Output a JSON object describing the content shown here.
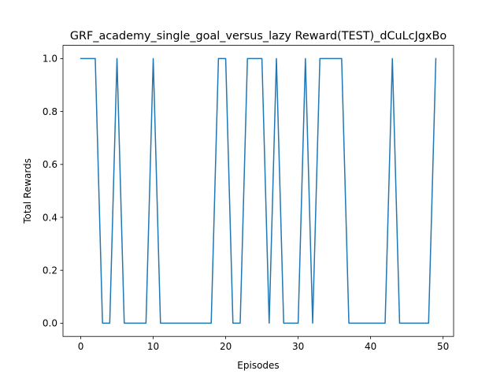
{
  "chart_data": {
    "type": "line",
    "title": "GRF_academy_single_goal_versus_lazy Reward(TEST)_dCuLcJgxBo",
    "xlabel": "Episodes",
    "ylabel": "Total Rewards",
    "xlim": [
      -2.45,
      51.45
    ],
    "ylim": [
      -0.05,
      1.05
    ],
    "xticks": [
      0,
      10,
      20,
      30,
      40,
      50
    ],
    "xtick_labels": [
      "0",
      "10",
      "20",
      "30",
      "40",
      "50"
    ],
    "yticks": [
      0.0,
      0.2,
      0.4,
      0.6,
      0.8,
      1.0
    ],
    "ytick_labels": [
      "0.0",
      "0.2",
      "0.4",
      "0.6",
      "0.8",
      "1.0"
    ],
    "grid": false,
    "series": [
      {
        "color": "#1f77b4",
        "x": [
          0,
          1,
          2,
          3,
          4,
          5,
          6,
          7,
          8,
          9,
          10,
          11,
          12,
          13,
          14,
          15,
          16,
          17,
          18,
          19,
          20,
          21,
          22,
          23,
          24,
          25,
          26,
          27,
          28,
          29,
          30,
          31,
          32,
          33,
          34,
          35,
          36,
          37,
          38,
          39,
          40,
          41,
          42,
          43,
          44,
          45,
          46,
          47,
          48,
          49
        ],
        "values": [
          1,
          1,
          1,
          0,
          0,
          1,
          0,
          0,
          0,
          0,
          1,
          0,
          0,
          0,
          0,
          0,
          0,
          0,
          0,
          1,
          1,
          0,
          0,
          1,
          1,
          1,
          0,
          1,
          0,
          0,
          0,
          1,
          0,
          1,
          1,
          1,
          1,
          0,
          0,
          0,
          0,
          0,
          0,
          1,
          0,
          0,
          0,
          0,
          0,
          1
        ]
      }
    ]
  }
}
